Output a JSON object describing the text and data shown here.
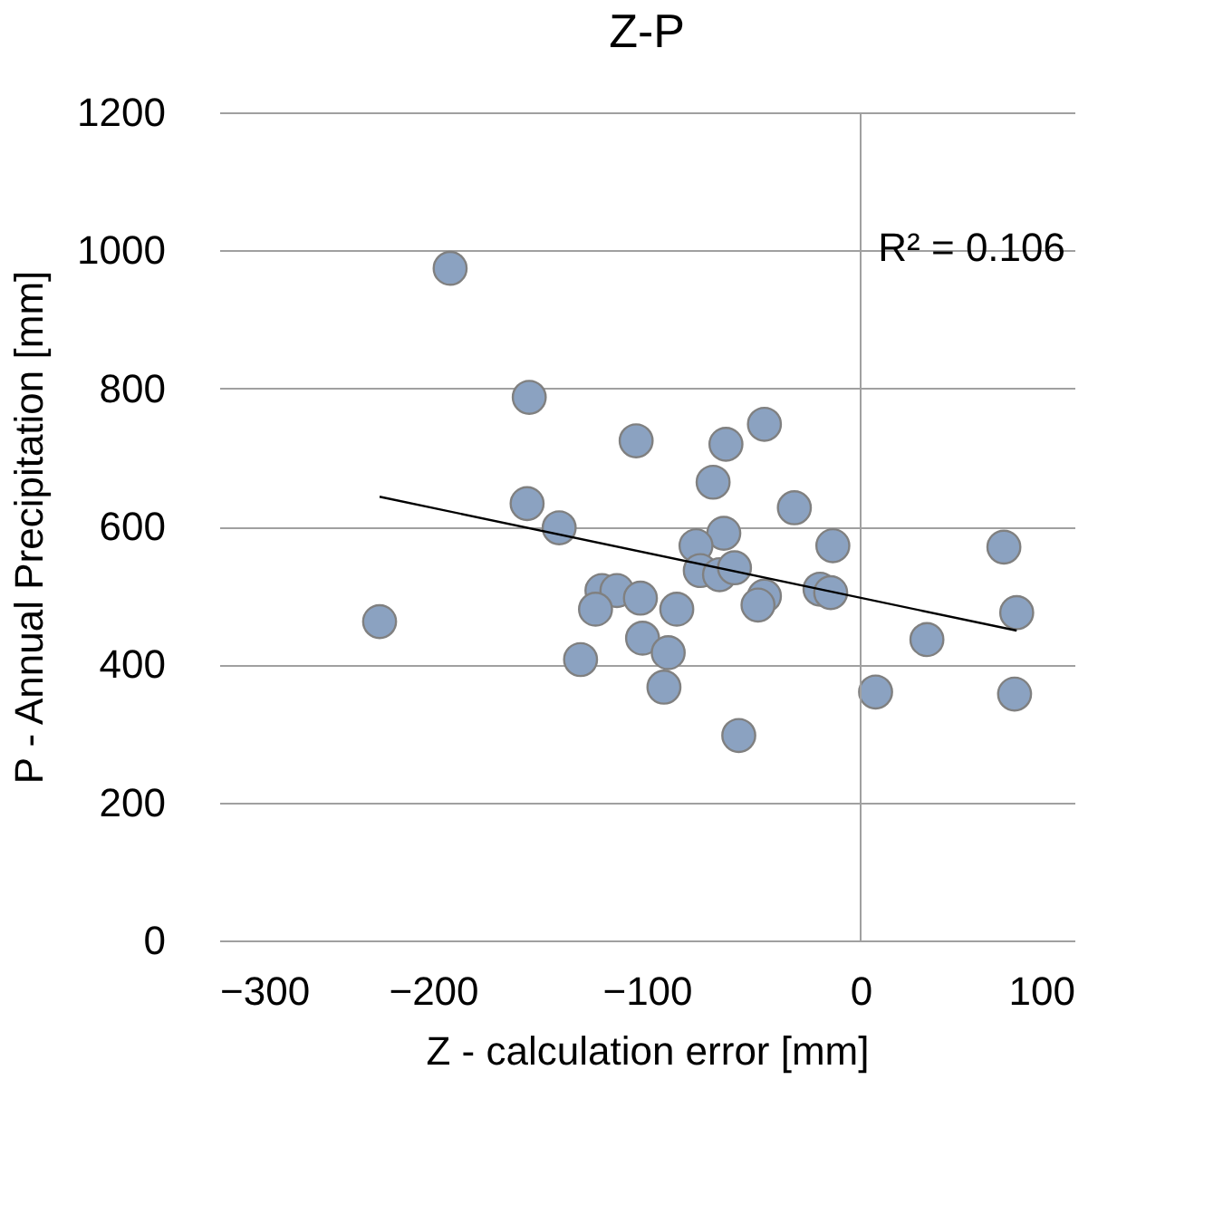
{
  "chart_data": {
    "type": "scatter",
    "title": "Z-P",
    "xlabel": "Z - calculation error [mm]",
    "ylabel": "P - Annual Precipitation [mm]",
    "xlim": [
      -300,
      100
    ],
    "xticks": [
      -300,
      -200,
      -100,
      0,
      100
    ],
    "ylim": [
      0,
      1200
    ],
    "yticks": [
      0,
      200,
      400,
      600,
      800,
      1000,
      1200
    ],
    "grid": "y",
    "annotations": [
      "R² = 0.106"
    ],
    "ref_lines": [
      {
        "axis": "x",
        "value": 0,
        "label": null,
        "color": "#a0a0a0"
      }
    ],
    "series": [
      {
        "marker": "circle",
        "color": "#8ba2c1",
        "x": [
          -225,
          -192,
          -155,
          -156,
          -141,
          -105,
          -131,
          -121,
          -114,
          -124,
          -103,
          -86,
          -102,
          -90,
          -92,
          -63,
          -45,
          -69,
          -31,
          -64,
          -77,
          -13,
          -75,
          -66,
          -59,
          -45,
          -48,
          -19,
          -14,
          -57,
          7,
          31,
          67,
          73,
          72
        ],
        "values": [
          462,
          974,
          787,
          633,
          598,
          724,
          407,
          507,
          507,
          480,
          496,
          480,
          438,
          417,
          367,
          719,
          748,
          664,
          627,
          590,
          572,
          572,
          536,
          530,
          540,
          499,
          486,
          509,
          504,
          297,
          360,
          436,
          570,
          475,
          357
        ]
      },
      {
        "type": "line",
        "marker": "none",
        "color": "#000000",
        "x": [
          -225,
          73
        ],
        "values": [
          643,
          449
        ]
      }
    ]
  }
}
